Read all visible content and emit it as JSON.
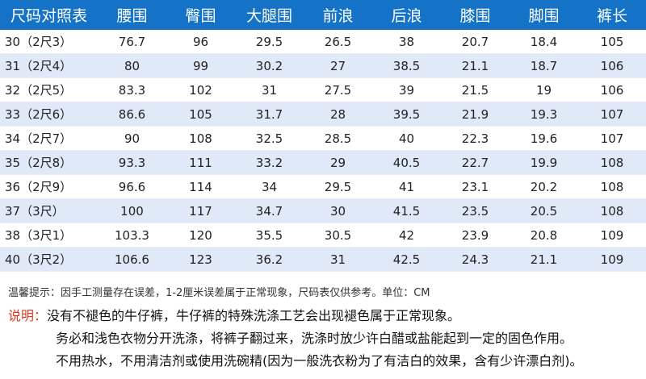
{
  "table": {
    "headers": [
      "尺码对照表",
      "腰围",
      "臀围",
      "大腿围",
      "前浪",
      "后浪",
      "膝围",
      "脚围",
      "裤长"
    ],
    "rows": [
      [
        "30（2尺3）",
        "76.7",
        "96",
        "29.5",
        "26.5",
        "38",
        "20.7",
        "18.4",
        "105"
      ],
      [
        "31（2尺4）",
        "80",
        "99",
        "30.2",
        "27",
        "38.5",
        "21.1",
        "18.7",
        "106"
      ],
      [
        "32（2尺5）",
        "83.3",
        "102",
        "31",
        "27.5",
        "39",
        "21.5",
        "19",
        "106"
      ],
      [
        "33（2尺6）",
        "86.6",
        "105",
        "31.7",
        "28",
        "39.5",
        "21.9",
        "19.3",
        "107"
      ],
      [
        "34（2尺7）",
        "90",
        "108",
        "32.5",
        "28.5",
        "40",
        "22.3",
        "19.6",
        "107"
      ],
      [
        "35（2尺8）",
        "93.3",
        "111",
        "33.2",
        "29",
        "40.5",
        "22.7",
        "19.9",
        "108"
      ],
      [
        "36（2尺9）",
        "96.6",
        "114",
        "34",
        "29.5",
        "41",
        "23.1",
        "20.2",
        "108"
      ],
      [
        "37（3尺）",
        "100",
        "117",
        "34.7",
        "30",
        "41.5",
        "23.5",
        "20.5",
        "108"
      ],
      [
        "38（3尺1）",
        "103.3",
        "120",
        "35.5",
        "30.5",
        "42",
        "23.9",
        "20.8",
        "109"
      ],
      [
        "40（3尺2）",
        "106.6",
        "123",
        "36.2",
        "31",
        "42.5",
        "24.3",
        "21.1",
        "109"
      ]
    ]
  },
  "note": "温馨提示：因手工测量存在误差，1-2厘米误差属于正常现象，尺码表仅供参考。单位：CM",
  "description": {
    "label": "说明：",
    "lines": [
      "没有不褪色的牛仔裤，牛仔裤的特殊洗涤工艺会出现褪色属于正常现象。",
      "务必和浅色衣物分开洗涤，将裤子翻过来，洗涤时放少许白醋或盐能起到一定的固色作用。",
      "不用热水，不用清洁剂或使用洗碗精(因为一般洗衣粉为了有洁白的效果，含有少许漂白剂)。"
    ]
  },
  "colors": {
    "header_bg": "#1473c6",
    "row_alt_bg": "#dfe9f8",
    "label_red": "#e03a1e"
  }
}
